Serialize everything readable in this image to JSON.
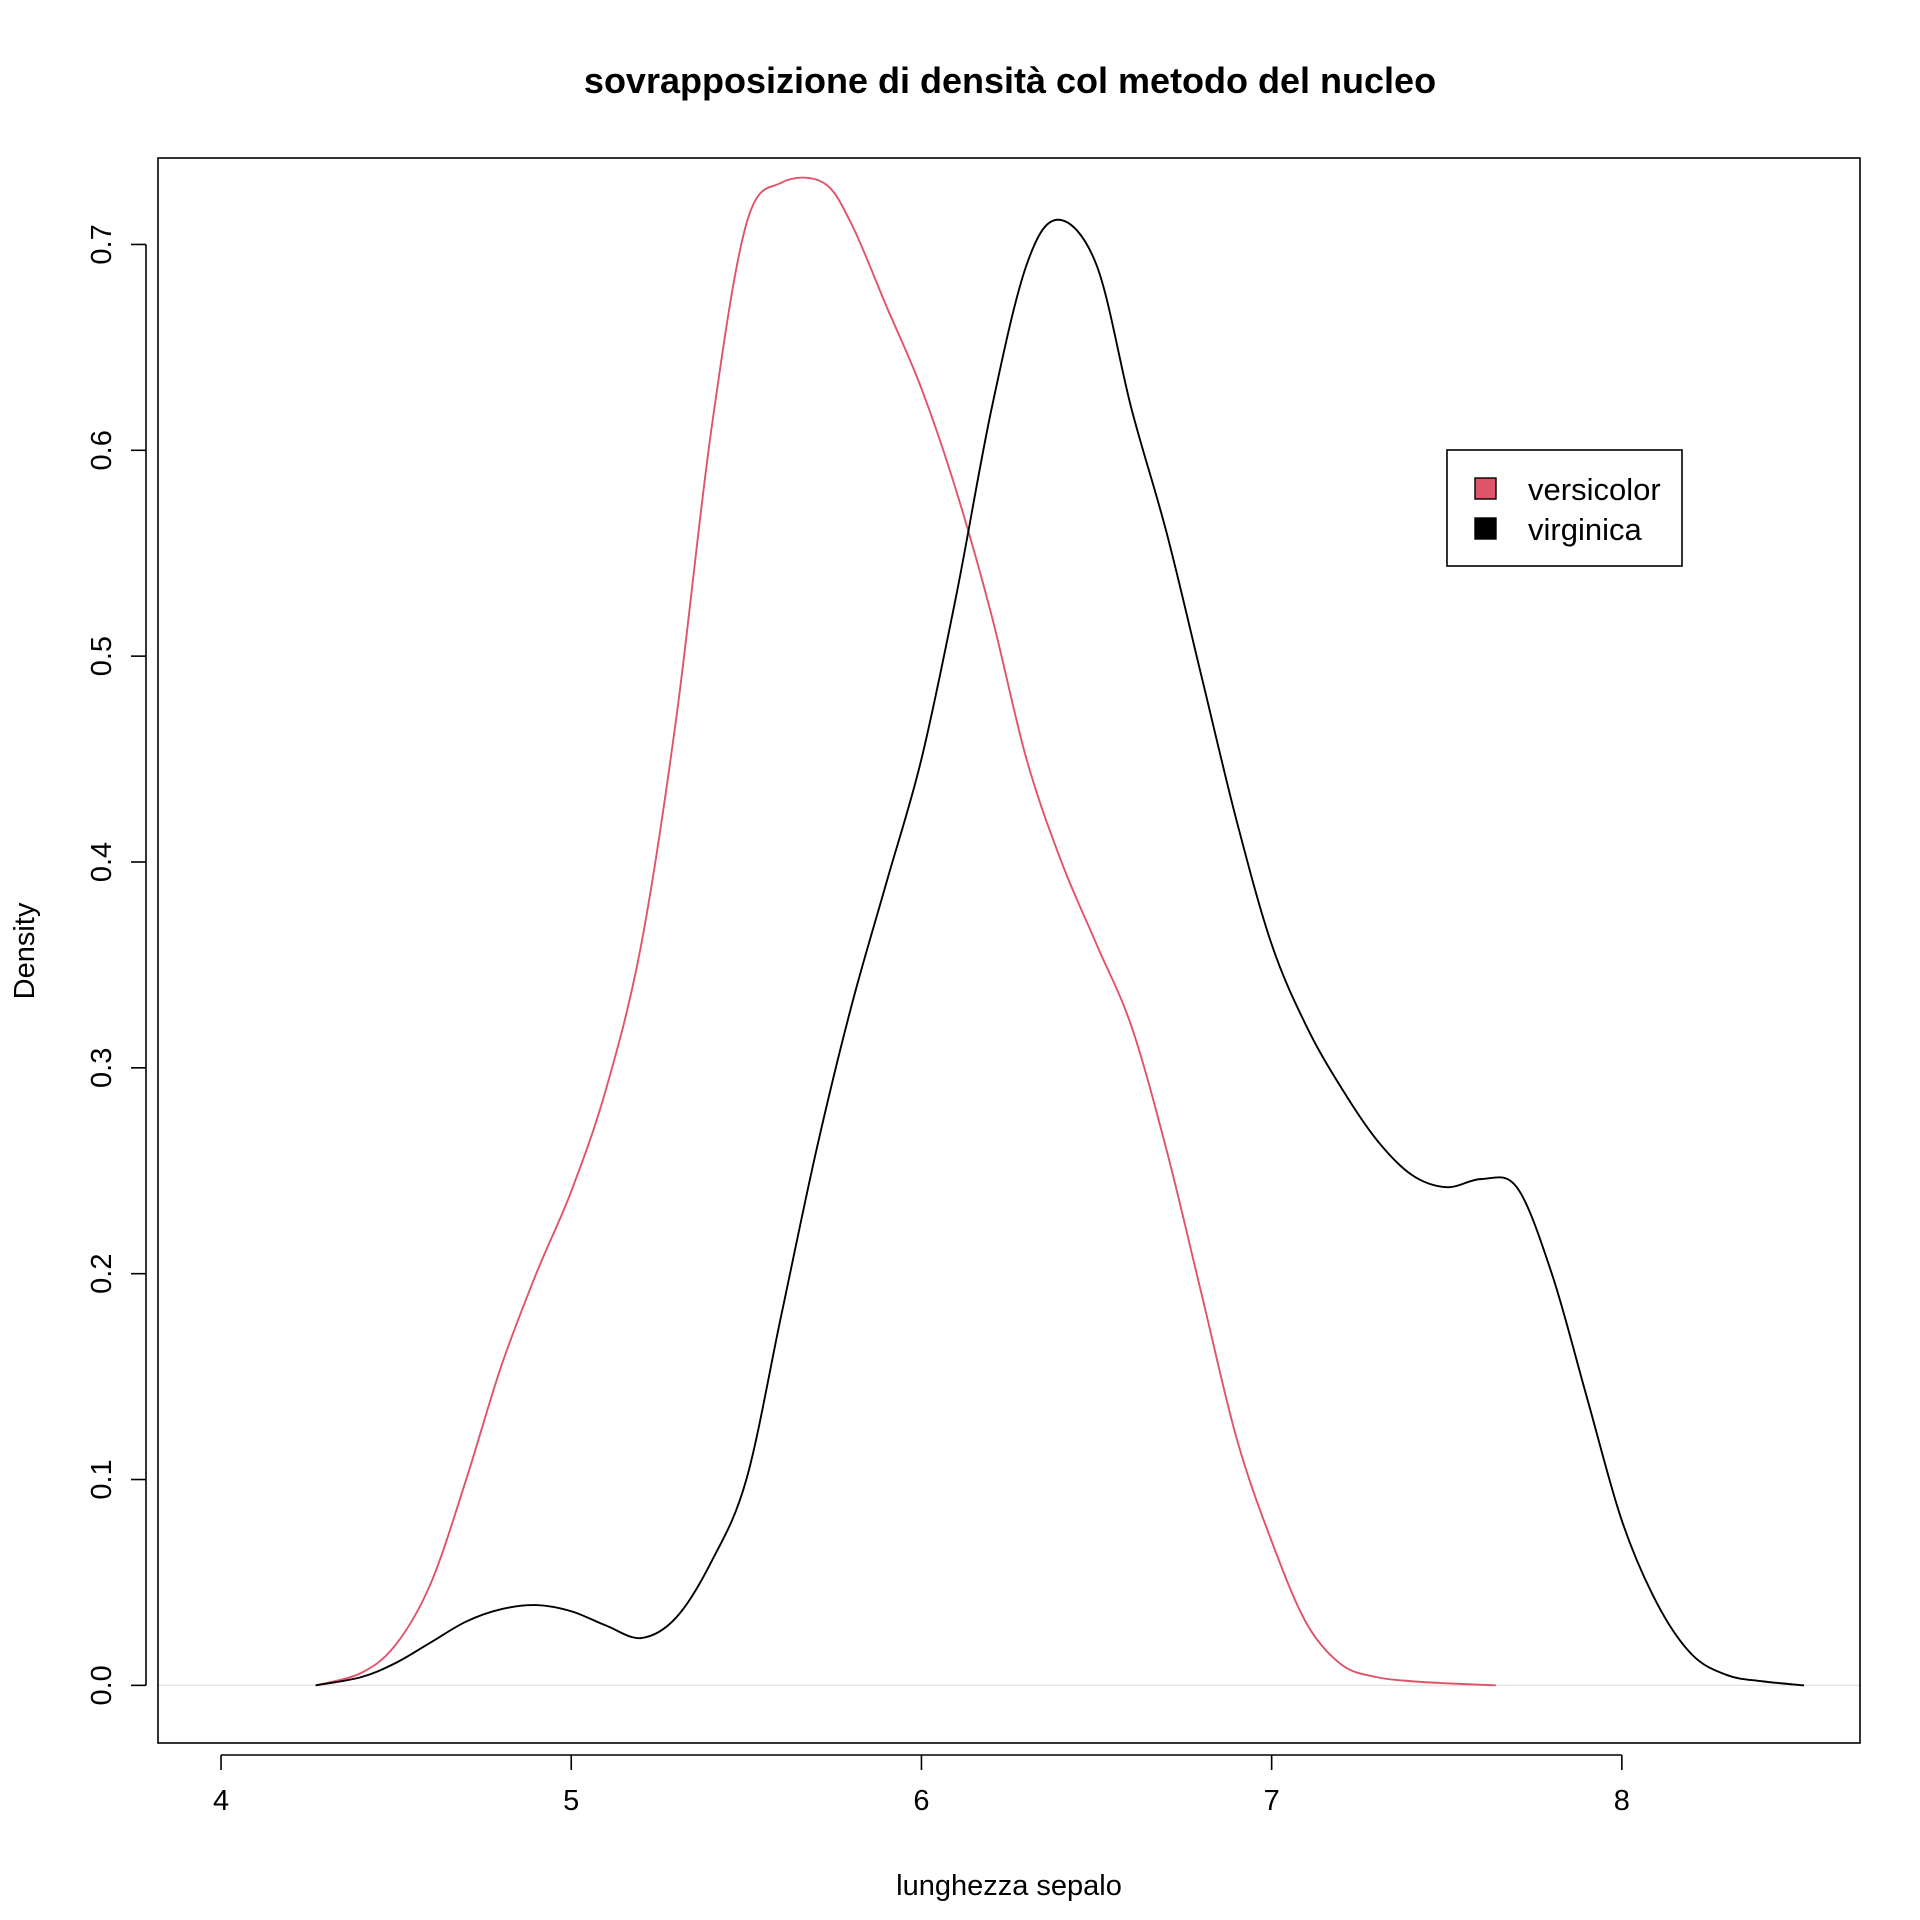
{
  "chart_data": {
    "type": "line",
    "title": "sovrapposizione di densità col metodo del nucleo",
    "xlabel": "lunghezza sepalo",
    "ylabel": "Density",
    "xlim": [
      3.82,
      8.68
    ],
    "ylim": [
      -0.028,
      0.742
    ],
    "x_ticks": [
      4,
      5,
      6,
      7,
      8
    ],
    "y_ticks": [
      0.0,
      0.1,
      0.2,
      0.3,
      0.4,
      0.5,
      0.6,
      0.7
    ],
    "x_tick_labels": [
      "4",
      "5",
      "6",
      "7",
      "8"
    ],
    "y_tick_labels": [
      "0.0",
      "0.1",
      "0.2",
      "0.3",
      "0.4",
      "0.5",
      "0.6",
      "0.7"
    ],
    "grid": false,
    "baseline": 0,
    "legend": {
      "position": "top-right",
      "entries": [
        {
          "label": "versicolor",
          "color": "#DF536B"
        },
        {
          "label": "virginica",
          "color": "#000000"
        }
      ]
    },
    "series": [
      {
        "name": "versicolor",
        "color": "#DF536B",
        "x": [
          4.27,
          4.4,
          4.5,
          4.6,
          4.7,
          4.8,
          4.9,
          5.0,
          5.1,
          5.2,
          5.3,
          5.4,
          5.5,
          5.6,
          5.72,
          5.8,
          5.9,
          6.0,
          6.1,
          6.2,
          6.3,
          6.4,
          6.5,
          6.6,
          6.7,
          6.8,
          6.9,
          7.0,
          7.1,
          7.2,
          7.3,
          7.4,
          7.5,
          7.64
        ],
        "y": [
          0.0,
          0.006,
          0.02,
          0.05,
          0.1,
          0.155,
          0.2,
          0.24,
          0.29,
          0.36,
          0.47,
          0.61,
          0.71,
          0.73,
          0.73,
          0.71,
          0.67,
          0.63,
          0.58,
          0.52,
          0.45,
          0.4,
          0.36,
          0.32,
          0.26,
          0.19,
          0.12,
          0.07,
          0.03,
          0.01,
          0.004,
          0.002,
          0.001,
          0.0
        ]
      },
      {
        "name": "virginica",
        "color": "#000000",
        "x": [
          4.27,
          4.4,
          4.5,
          4.6,
          4.7,
          4.8,
          4.9,
          5.0,
          5.1,
          5.2,
          5.3,
          5.4,
          5.5,
          5.6,
          5.7,
          5.8,
          5.9,
          6.0,
          6.1,
          6.2,
          6.3,
          6.39,
          6.5,
          6.6,
          6.7,
          6.8,
          6.9,
          7.0,
          7.1,
          7.2,
          7.3,
          7.4,
          7.5,
          7.6,
          7.7,
          7.8,
          7.9,
          8.0,
          8.1,
          8.2,
          8.3,
          8.4,
          8.52
        ],
        "y": [
          0.0,
          0.004,
          0.011,
          0.021,
          0.031,
          0.037,
          0.039,
          0.036,
          0.029,
          0.023,
          0.033,
          0.06,
          0.1,
          0.18,
          0.26,
          0.33,
          0.39,
          0.45,
          0.53,
          0.62,
          0.69,
          0.712,
          0.69,
          0.62,
          0.56,
          0.49,
          0.42,
          0.36,
          0.32,
          0.29,
          0.265,
          0.248,
          0.242,
          0.246,
          0.242,
          0.2,
          0.14,
          0.08,
          0.04,
          0.015,
          0.005,
          0.002,
          0.0
        ]
      }
    ]
  }
}
